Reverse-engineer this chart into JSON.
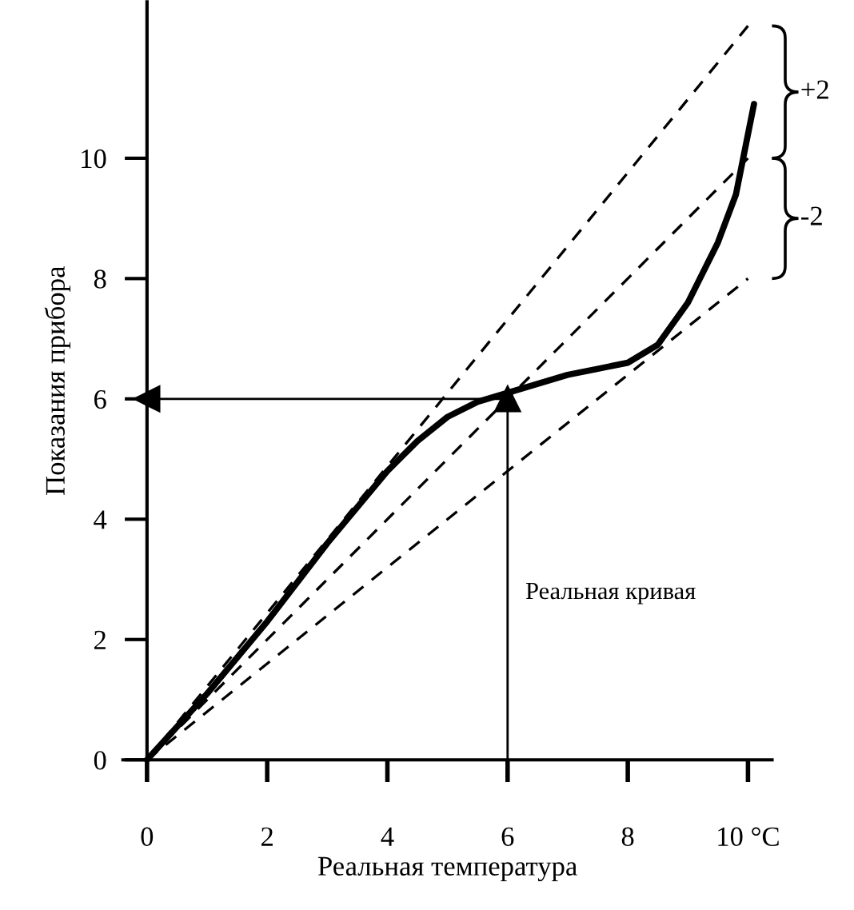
{
  "chart_data": {
    "type": "line",
    "xlabel": "Реальная температура",
    "ylabel": "Показания прибора",
    "xlim": [
      -0.4,
      10.4
    ],
    "ylim": [
      0,
      12.6
    ],
    "xticks": [
      0,
      2,
      4,
      {
        "value": 6,
        "label": "6"
      },
      8,
      {
        "value": 10,
        "label": "10 °C"
      }
    ],
    "yticks": [
      0,
      2,
      4,
      6,
      8,
      10
    ],
    "grid": false,
    "legend": false,
    "series": [
      {
        "x": [
          0,
          10
        ],
        "values": [
          0,
          12.2
        ],
        "color": "#000000",
        "line_style": "dashed"
      },
      {
        "x": [
          0,
          10
        ],
        "values": [
          0,
          10
        ],
        "color": "#000000",
        "line_style": "dashed"
      },
      {
        "x": [
          0,
          10
        ],
        "values": [
          0,
          8
        ],
        "color": "#000000",
        "line_style": "dashed"
      },
      {
        "x": [
          0,
          1,
          2,
          3,
          4,
          4.5,
          5,
          5.5,
          6,
          6.5,
          7,
          7.5,
          8,
          8.5,
          9,
          9.5,
          9.8,
          10.1
        ],
        "values": [
          0,
          1.1,
          2.3,
          3.6,
          4.8,
          5.3,
          5.7,
          5.95,
          6.1,
          6.25,
          6.4,
          6.5,
          6.6,
          6.9,
          7.6,
          8.6,
          9.4,
          10.9
        ],
        "color": "#000000",
        "line_style": "solid"
      },
      {
        "x": [
          6,
          6
        ],
        "values": [
          0,
          6
        ],
        "color": "#000000",
        "line_style": "solid",
        "marker": "triangle"
      },
      {
        "x": [
          6,
          0
        ],
        "values": [
          6,
          6
        ],
        "color": "#000000",
        "line_style": "solid",
        "marker": "triangle"
      }
    ],
    "annotations": [
      "+2",
      "-2",
      "Реальная кривая"
    ]
  }
}
